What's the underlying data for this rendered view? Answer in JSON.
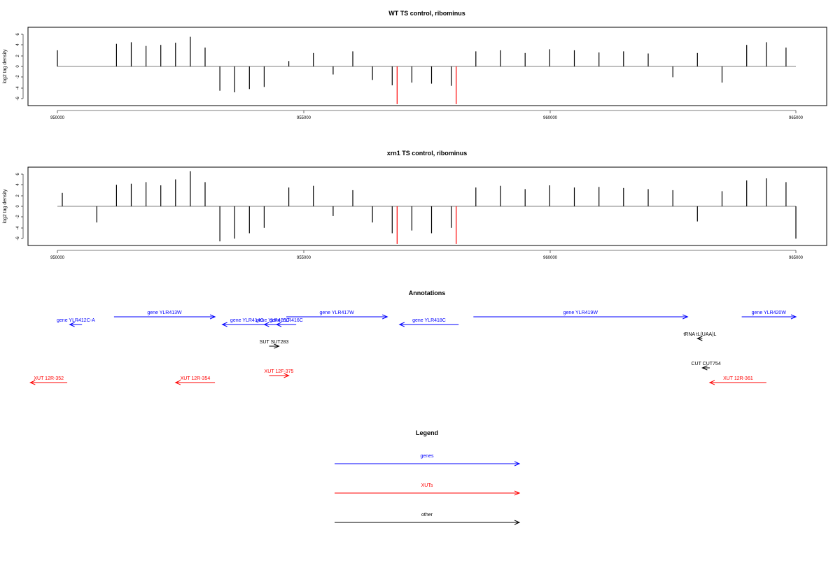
{
  "colors": {
    "gene": "#0000ff",
    "xut": "#ff0000",
    "other": "#000000",
    "signal": "#000000",
    "highlight": "#ff0000"
  },
  "tracks": [
    {
      "title": "WT TS control, ribominus",
      "ylabel": "log2 tag density",
      "xticks": [
        "950000",
        "955000",
        "960000",
        "965000"
      ],
      "yticks": [
        "6",
        "4",
        "2",
        "0",
        "-2",
        "-4",
        "-6"
      ]
    },
    {
      "title": "xrn1 TS control, ribominus",
      "ylabel": "log2 tag density",
      "xticks": [
        "950000",
        "955000",
        "960000",
        "965000"
      ],
      "yticks": [
        "6",
        "4",
        "2",
        "0",
        "-2",
        "-4",
        "-6"
      ]
    }
  ],
  "annotations": {
    "title": "Annotations",
    "features": [
      {
        "label": "gene YLR412C-A",
        "start": 950250,
        "end": 950500,
        "strand": "-",
        "kind": "gene"
      },
      {
        "label": "gene YLR413W",
        "start": 951150,
        "end": 953200,
        "strand": "+",
        "kind": "gene"
      },
      {
        "label": "gene YLR414C",
        "start": 953350,
        "end": 954350,
        "strand": "-",
        "kind": "gene"
      },
      {
        "label": "gene YLR415C",
        "start": 954200,
        "end": 954550,
        "strand": "-",
        "kind": "gene"
      },
      {
        "label": "gene YLR416C",
        "start": 954450,
        "end": 954850,
        "strand": "-",
        "kind": "gene"
      },
      {
        "label": "gene YLR417W",
        "start": 954650,
        "end": 956700,
        "strand": "+",
        "kind": "gene"
      },
      {
        "label": "gene YLR418C",
        "start": 956950,
        "end": 958150,
        "strand": "-",
        "kind": "gene"
      },
      {
        "label": "gene YLR419W",
        "start": 958450,
        "end": 962800,
        "strand": "+",
        "kind": "gene"
      },
      {
        "label": "gene YLR420W",
        "start": 963900,
        "end": 965000,
        "strand": "+",
        "kind": "gene"
      },
      {
        "label": "SUT SUT283",
        "start": 954300,
        "end": 954500,
        "strand": "+",
        "kind": "other"
      },
      {
        "label": "tRNA tL(UAA)L",
        "start": 963000,
        "end": 963100,
        "strand": "-",
        "kind": "other"
      },
      {
        "label": "CUT CUT754",
        "start": 963100,
        "end": 963250,
        "strand": "-",
        "kind": "other"
      },
      {
        "label": "XUT 12R-352",
        "start": 949450,
        "end": 950200,
        "strand": "-",
        "kind": "xut"
      },
      {
        "label": "XUT 12R-354",
        "start": 952400,
        "end": 953200,
        "strand": "-",
        "kind": "xut"
      },
      {
        "label": "XUT 12F-375",
        "start": 954300,
        "end": 954700,
        "strand": "+",
        "kind": "xut"
      },
      {
        "label": "XUT 12R-361",
        "start": 963250,
        "end": 964400,
        "strand": "-",
        "kind": "xut"
      }
    ]
  },
  "legend": {
    "title": "Legend",
    "items": [
      {
        "label": "genes",
        "kind": "gene"
      },
      {
        "label": "XUTs",
        "kind": "xut"
      },
      {
        "label": "other",
        "kind": "other"
      }
    ]
  },
  "chart_data": [
    {
      "type": "bar",
      "title": "WT TS control, ribominus",
      "xlabel": "",
      "ylabel": "log2 tag density",
      "xlim": [
        949400,
        965400
      ],
      "ylim": [
        -7,
        7
      ],
      "x": [
        950000,
        951200,
        951500,
        951800,
        952100,
        952400,
        952700,
        953000,
        953300,
        953600,
        953900,
        954200,
        954700,
        955200,
        955600,
        956000,
        956400,
        956800,
        956900,
        957200,
        957600,
        958000,
        958100,
        958500,
        959000,
        959500,
        960000,
        960500,
        961000,
        961500,
        962000,
        962500,
        963000,
        963500,
        964000,
        964400,
        964800
      ],
      "values": [
        3,
        4.2,
        4.5,
        3.8,
        4,
        4.4,
        5.5,
        3.5,
        -4.5,
        -4.8,
        -4.2,
        -3.8,
        1,
        2.5,
        -1.5,
        2.8,
        -2.5,
        -3.5,
        -7,
        -3,
        -3.2,
        -3.6,
        -7,
        2.8,
        3,
        2.5,
        3.2,
        3,
        2.6,
        2.8,
        2.4,
        -2,
        2.5,
        -3,
        4,
        4.5,
        3.5
      ],
      "highlight_x": [
        956900,
        958100
      ]
    },
    {
      "type": "bar",
      "title": "xrn1 TS control, ribominus",
      "xlabel": "",
      "ylabel": "log2 tag density",
      "xlim": [
        949400,
        965400
      ],
      "ylim": [
        -7,
        7
      ],
      "x": [
        950100,
        950800,
        951200,
        951500,
        951800,
        952100,
        952400,
        952700,
        953000,
        953300,
        953600,
        953900,
        954200,
        954700,
        955200,
        955600,
        956000,
        956400,
        956800,
        956900,
        957200,
        957600,
        958000,
        958100,
        958500,
        959000,
        959500,
        960000,
        960500,
        961000,
        961500,
        962000,
        962500,
        963000,
        963500,
        964000,
        964400,
        964800,
        965000
      ],
      "values": [
        2.5,
        -3,
        4,
        4.2,
        4.5,
        3.9,
        5,
        6.5,
        4.5,
        -6.5,
        -6,
        -5,
        -4,
        3.5,
        3.8,
        -1.8,
        3,
        -3,
        -5,
        -7,
        -4.5,
        -5,
        -4,
        -7,
        3.5,
        3.8,
        3.2,
        3.9,
        3.5,
        3.6,
        3.4,
        3.2,
        3,
        -2.8,
        2.8,
        4.8,
        5.2,
        4.5,
        -6
      ],
      "highlight_x": [
        956900,
        958100
      ]
    }
  ]
}
